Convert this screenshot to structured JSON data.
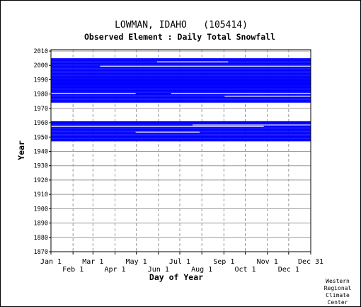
{
  "chart_data": {
    "type": "heatmap",
    "title": "LOWMAN, IDAHO   (105414)",
    "subtitle": "Observed Element : Daily Total Snowfall",
    "xlabel": "Day of Year",
    "ylabel": "Year",
    "x_ticks_row1": [
      "Jan 1",
      "Mar 1",
      "May 1",
      "Jul 1",
      "Sep 1",
      "Nov 1",
      "Dec 31"
    ],
    "x_ticks_row2": [
      "Feb 1",
      "Apr 1",
      "Jun 1",
      "Aug 1",
      "Oct 1",
      "Dec 1"
    ],
    "y_ticks": [
      2010,
      2000,
      1990,
      1980,
      1970,
      1960,
      1950,
      1940,
      1930,
      1920,
      1910,
      1900,
      1890,
      1880,
      1870
    ],
    "ylim": [
      1870,
      2011
    ],
    "xlim": [
      1,
      366
    ],
    "grid": true,
    "series_color": "#0000ff",
    "data_blocks": [
      {
        "years": [
          1947,
          1960
        ],
        "days": [
          1,
          366
        ],
        "note": "observed"
      },
      {
        "years": [
          1974,
          2004
        ],
        "days": [
          1,
          366
        ],
        "note": "observed"
      }
    ],
    "missing_rows": [
      {
        "year": 1953,
        "days": [
          120,
          210
        ]
      },
      {
        "year": 1957,
        "days": [
          1,
          300
        ]
      },
      {
        "year": 1958,
        "days": [
          200,
          366
        ]
      },
      {
        "year": 1980,
        "days": [
          1,
          120
        ]
      },
      {
        "year": 1980,
        "days": [
          170,
          366
        ]
      },
      {
        "year": 1978,
        "days": [
          245,
          366
        ]
      },
      {
        "year": 2002,
        "days": [
          150,
          250
        ]
      },
      {
        "year": 1999,
        "days": [
          70,
          366
        ]
      }
    ]
  },
  "credit": [
    "Western",
    "Regional",
    "Climate",
    "Center"
  ]
}
